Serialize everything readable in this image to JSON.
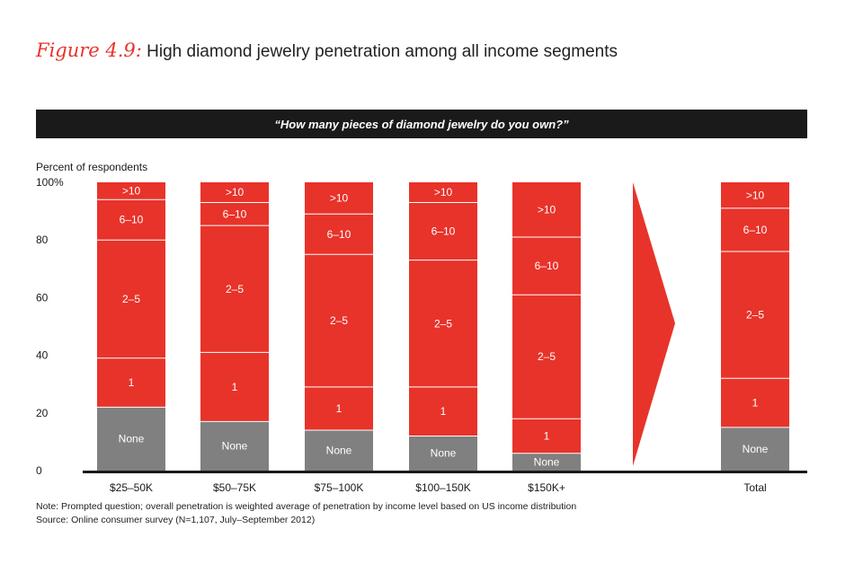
{
  "title": {
    "figure_label": "Figure 4.9:",
    "text": "High diamond jewelry penetration among all income segments"
  },
  "question": "“How many pieces of diamond jewelry do you own?”",
  "chart_data": {
    "type": "bar",
    "stacked": true,
    "ylabel": "Percent of respondents",
    "ylim": [
      0,
      100
    ],
    "yticks": [
      "0",
      "20",
      "40",
      "60",
      "80",
      "100%"
    ],
    "categories": [
      "$25–50K",
      "$50–75K",
      "$75–100K",
      "$100–150K",
      "$150K+",
      "Total"
    ],
    "series": [
      {
        "name": "None",
        "values": [
          22,
          17,
          14,
          12,
          6,
          15
        ]
      },
      {
        "name": "1",
        "values": [
          17,
          24,
          15,
          17,
          12,
          17
        ]
      },
      {
        "name": "2–5",
        "values": [
          41,
          44,
          46,
          44,
          43,
          44
        ]
      },
      {
        "name": "6–10",
        "values": [
          14,
          8,
          14,
          20,
          20,
          15
        ]
      },
      {
        "name": ">10",
        "values": [
          6,
          7,
          11,
          7,
          19,
          9
        ]
      }
    ],
    "colors": {
      "None": "#808080",
      "1": "#e8332a",
      "2–5": "#e8332a",
      "6–10": "#e8332a",
      ">10": "#e8332a"
    },
    "separator_color": "#ffffff",
    "arrow_color": "#e8332a",
    "grid": false
  },
  "notes": {
    "note": "Note: Prompted question; overall penetration is weighted average of penetration by income level based on US income distribution",
    "source": "Source: Online consumer survey (N=1,107, July–September 2012)"
  }
}
